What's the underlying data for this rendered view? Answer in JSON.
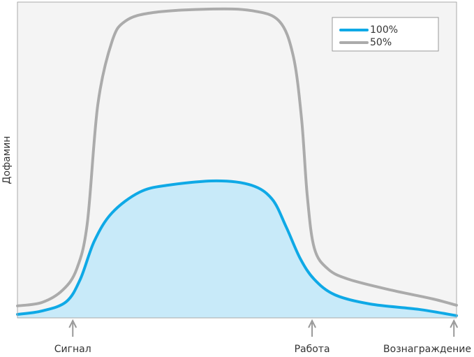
{
  "chart_data": {
    "type": "line",
    "y_label": "Дофамин",
    "xlim": [
      0,
      100
    ],
    "ylim": [
      0,
      100
    ],
    "series": [
      {
        "name": "100%",
        "color": "#0fa9e6",
        "fill": "#c8eaf9",
        "x": [
          0,
          5.6,
          11.1,
          14.3,
          17.5,
          21.5,
          27.8,
          34.2,
          45.3,
          53.3,
          58.0,
          61.2,
          64.4,
          67.6,
          72.3,
          80.3,
          91.4,
          100
        ],
        "values": [
          1.1,
          2.2,
          5.1,
          12.2,
          24.3,
          33.2,
          39.8,
          42.0,
          43.4,
          42.0,
          37.6,
          28.8,
          18.8,
          12.2,
          7.3,
          4.4,
          2.7,
          0.7
        ]
      },
      {
        "name": "50%",
        "color": "#ababab",
        "x": [
          0,
          5.6,
          10.3,
          13.5,
          15.9,
          18.3,
          21.5,
          24.6,
          31.0,
          43.7,
          53.3,
          59.6,
          62.8,
          64.7,
          66.0,
          67.6,
          70.7,
          75.5,
          85.1,
          94.6,
          100
        ],
        "values": [
          3.8,
          4.9,
          8.8,
          15.5,
          29.9,
          67.5,
          87.4,
          94.0,
          96.7,
          97.8,
          97.3,
          94.0,
          83.0,
          63.1,
          38.7,
          22.1,
          15.5,
          12.2,
          8.8,
          6.0,
          4.0
        ]
      }
    ],
    "annotations": [
      {
        "text": "Сигнал",
        "x": 12.6
      },
      {
        "text": "Работа",
        "x": 67.1
      },
      {
        "text": "Вознаграждение",
        "x": 99.4
      }
    ],
    "legend": "upper right"
  }
}
